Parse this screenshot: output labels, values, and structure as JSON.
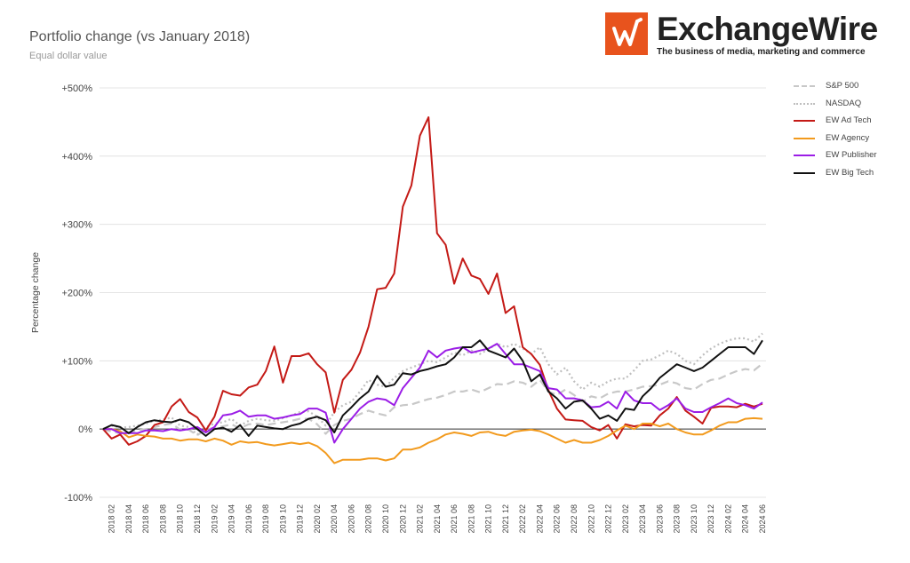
{
  "header": {
    "title": "Portfolio change (vs January 2018)",
    "subtitle": "Equal dollar value"
  },
  "logo": {
    "wordmark": "ExchangeWire",
    "tagline": "The business of media, marketing and commerce",
    "icon": "w-checkmark-icon",
    "color": "#e8531d"
  },
  "chart_data": {
    "type": "line",
    "ylabel": "Percentage change",
    "ylim": [
      -100,
      500
    ],
    "yticks": [
      -100,
      0,
      100,
      200,
      300,
      400,
      500
    ],
    "ytick_labels": [
      "-100%",
      "0%",
      "+100%",
      "+200%",
      "+300%",
      "+400%",
      "+500%"
    ],
    "grid": true,
    "legend_position": "right",
    "x_tick_labels": [
      "2018 02",
      "2018 04",
      "2018 06",
      "2018 08",
      "2018 10",
      "2018 12",
      "2019 02",
      "2019 04",
      "2019 06",
      "2019 08",
      "2019 10",
      "2019 12",
      "2020 02",
      "2020 04",
      "2020 06",
      "2020 08",
      "2020 10",
      "2020 12",
      "2021 02",
      "2021 04",
      "2021 06",
      "2021 08",
      "2021 10",
      "2021 12",
      "2022 02",
      "2022 04",
      "2022 06",
      "2022 08",
      "2022 10",
      "2022 12",
      "2023 02",
      "2023 04",
      "2023 06",
      "2023 08",
      "2023 10",
      "2023 12",
      "2024 02",
      "2024 04",
      "2024 06"
    ],
    "x": [
      "2018-01",
      "2018-02",
      "2018-03",
      "2018-04",
      "2018-05",
      "2018-06",
      "2018-07",
      "2018-08",
      "2018-09",
      "2018-10",
      "2018-11",
      "2018-12",
      "2019-01",
      "2019-02",
      "2019-03",
      "2019-04",
      "2019-05",
      "2019-06",
      "2019-07",
      "2019-08",
      "2019-09",
      "2019-10",
      "2019-11",
      "2019-12",
      "2020-01",
      "2020-02",
      "2020-03",
      "2020-04",
      "2020-05",
      "2020-06",
      "2020-07",
      "2020-08",
      "2020-09",
      "2020-10",
      "2020-11",
      "2020-12",
      "2021-01",
      "2021-02",
      "2021-03",
      "2021-04",
      "2021-05",
      "2021-06",
      "2021-07",
      "2021-08",
      "2021-09",
      "2021-10",
      "2021-11",
      "2021-12",
      "2022-01",
      "2022-02",
      "2022-03",
      "2022-04",
      "2022-05",
      "2022-06",
      "2022-07",
      "2022-08",
      "2022-09",
      "2022-10",
      "2022-11",
      "2022-12",
      "2023-01",
      "2023-02",
      "2023-03",
      "2023-04",
      "2023-05",
      "2023-06",
      "2023-07",
      "2023-08",
      "2023-09",
      "2023-10",
      "2023-11",
      "2023-12",
      "2024-01",
      "2024-02",
      "2024-03",
      "2024-04",
      "2024-05",
      "2024-06"
    ],
    "series": [
      {
        "name": "S&P 500",
        "color": "#c8c8c8",
        "dash": "dash",
        "values": [
          0,
          -4,
          -6,
          -5,
          -2,
          0,
          3,
          6,
          8,
          -1,
          -1,
          -9,
          -1,
          2,
          4,
          7,
          1,
          7,
          8,
          6,
          8,
          10,
          12,
          15,
          15,
          7,
          -7,
          6,
          12,
          15,
          22,
          27,
          23,
          20,
          32,
          35,
          36,
          40,
          44,
          46,
          50,
          55,
          55,
          58,
          54,
          60,
          66,
          65,
          70,
          68,
          62,
          72,
          55,
          50,
          58,
          50,
          40,
          48,
          45,
          52,
          55,
          55,
          58,
          62,
          63,
          65,
          70,
          67,
          60,
          58,
          66,
          72,
          74,
          80,
          85,
          88,
          86,
          96
        ]
      },
      {
        "name": "NASDAQ",
        "color": "#bfbfbf",
        "dash": "dot",
        "values": [
          0,
          5,
          2,
          3,
          5,
          8,
          12,
          14,
          17,
          5,
          3,
          -8,
          3,
          8,
          10,
          15,
          5,
          12,
          15,
          13,
          12,
          16,
          20,
          25,
          26,
          18,
          5,
          25,
          35,
          40,
          55,
          72,
          65,
          62,
          75,
          85,
          90,
          95,
          100,
          98,
          105,
          112,
          108,
          115,
          110,
          117,
          125,
          120,
          125,
          118,
          110,
          120,
          95,
          80,
          90,
          70,
          58,
          68,
          62,
          70,
          74,
          74,
          86,
          100,
          102,
          108,
          115,
          110,
          100,
          95,
          108,
          118,
          125,
          130,
          133,
          133,
          128,
          140
        ]
      },
      {
        "name": "EW Ad Tech",
        "color": "#c41a16",
        "dash": "solid",
        "values": [
          0,
          -14,
          -8,
          -23,
          -18,
          -10,
          6,
          10,
          33,
          44,
          25,
          17,
          -2,
          18,
          56,
          51,
          49,
          61,
          65,
          85,
          121,
          68,
          107,
          107,
          111,
          95,
          83,
          24,
          72,
          87,
          112,
          150,
          205,
          207,
          228,
          326,
          357,
          430,
          457,
          287,
          270,
          213,
          250,
          225,
          220,
          198,
          228,
          170,
          180,
          120,
          110,
          94,
          57,
          30,
          14,
          13,
          12,
          3,
          -2,
          6,
          -14,
          7,
          4,
          6,
          5,
          20,
          30,
          47,
          27,
          18,
          8,
          31,
          33,
          33,
          32,
          37,
          33,
          37
        ]
      },
      {
        "name": "EW Agency",
        "color": "#f29a1d",
        "dash": "solid",
        "values": [
          0,
          0,
          -3,
          -12,
          -8,
          -10,
          -11,
          -14,
          -14,
          -17,
          -15,
          -15,
          -18,
          -14,
          -17,
          -23,
          -18,
          -20,
          -19,
          -22,
          -24,
          -22,
          -20,
          -22,
          -20,
          -25,
          -35,
          -50,
          -45,
          -45,
          -45,
          -43,
          -43,
          -46,
          -43,
          -30,
          -30,
          -27,
          -20,
          -15,
          -8,
          -5,
          -7,
          -10,
          -5,
          -4,
          -8,
          -10,
          -4,
          -2,
          -1,
          -3,
          -8,
          -14,
          -20,
          -16,
          -20,
          -20,
          -16,
          -10,
          -2,
          5,
          0,
          8,
          8,
          4,
          8,
          0,
          -5,
          -8,
          -8,
          -2,
          5,
          10,
          10,
          15,
          16,
          15
        ]
      },
      {
        "name": "EW Publisher",
        "color": "#9b1de6",
        "dash": "solid",
        "values": [
          0,
          0,
          -6,
          -6,
          -6,
          -2,
          -2,
          -3,
          0,
          -2,
          0,
          3,
          -5,
          3,
          20,
          22,
          27,
          18,
          20,
          20,
          15,
          17,
          20,
          22,
          30,
          30,
          24,
          -20,
          0,
          15,
          30,
          40,
          45,
          43,
          35,
          60,
          75,
          90,
          115,
          105,
          115,
          118,
          120,
          112,
          115,
          118,
          125,
          110,
          95,
          95,
          90,
          85,
          60,
          58,
          45,
          45,
          42,
          32,
          33,
          40,
          30,
          55,
          42,
          38,
          38,
          28,
          35,
          45,
          30,
          25,
          25,
          32,
          38,
          45,
          38,
          35,
          30,
          39
        ]
      },
      {
        "name": "EW Big Tech",
        "color": "#111111",
        "dash": "solid",
        "values": [
          0,
          6,
          3,
          -6,
          3,
          10,
          13,
          11,
          10,
          14,
          10,
          0,
          -10,
          0,
          2,
          -4,
          6,
          -10,
          5,
          3,
          1,
          0,
          5,
          8,
          15,
          18,
          13,
          -5,
          20,
          32,
          45,
          55,
          78,
          62,
          65,
          82,
          80,
          85,
          88,
          92,
          95,
          105,
          120,
          120,
          130,
          115,
          110,
          105,
          118,
          100,
          70,
          80,
          55,
          45,
          30,
          40,
          42,
          30,
          15,
          20,
          12,
          30,
          28,
          48,
          60,
          75,
          85,
          95,
          90,
          85,
          90,
          100,
          110,
          120,
          120,
          120,
          110,
          130
        ]
      }
    ]
  }
}
